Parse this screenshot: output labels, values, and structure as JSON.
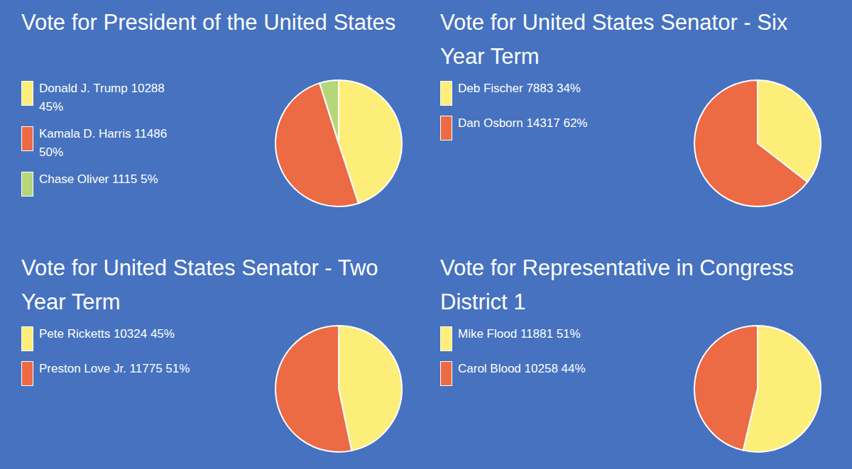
{
  "chart_data": [
    {
      "type": "pie",
      "title": "Vote for President of the United States",
      "categories": [
        "Donald J. Trump",
        "Kamala D. Harris",
        "Chase Oliver"
      ],
      "values": [
        10288,
        11486,
        1115
      ],
      "percent_labels": [
        "45%",
        "50%",
        "5%"
      ],
      "colors": [
        "#fdee7a",
        "#ec6a44",
        "#b6d67c"
      ]
    },
    {
      "type": "pie",
      "title": "Vote for United States Senator - Six Year Term",
      "categories": [
        "Deb Fischer",
        "Dan Osborn"
      ],
      "values": [
        7883,
        14317
      ],
      "percent_labels": [
        "34%",
        "62%"
      ],
      "colors": [
        "#fdee7a",
        "#ec6a44"
      ]
    },
    {
      "type": "pie",
      "title": "Vote for United States Senator - Two Year Term",
      "categories": [
        "Pete Ricketts",
        "Preston Love Jr."
      ],
      "values": [
        10324,
        11775
      ],
      "percent_labels": [
        "45%",
        "51%"
      ],
      "colors": [
        "#fdee7a",
        "#ec6a44"
      ]
    },
    {
      "type": "pie",
      "title": "Vote for Representative in Congress District 1",
      "categories": [
        "Mike Flood",
        "Carol Blood"
      ],
      "values": [
        11881,
        10258
      ],
      "percent_labels": [
        "51%",
        "44%"
      ],
      "colors": [
        "#fdee7a",
        "#ec6a44"
      ]
    }
  ]
}
